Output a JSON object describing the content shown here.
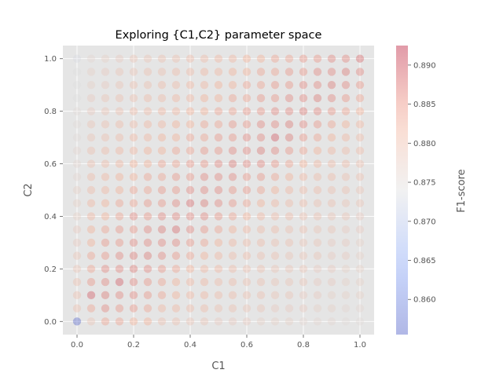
{
  "chart_data": {
    "type": "scatter",
    "title": "Exploring {C1,C2} parameter space",
    "xlabel": "C1",
    "ylabel": "C2",
    "colorbar_label": "F1-score",
    "xlim": [
      -0.05,
      1.05
    ],
    "ylim": [
      -0.05,
      1.05
    ],
    "x_ticks": [
      "0.0",
      "0.2",
      "0.4",
      "0.6",
      "0.8",
      "1.0"
    ],
    "y_ticks": [
      "0.0",
      "0.2",
      "0.4",
      "0.6",
      "0.8",
      "1.0"
    ],
    "colorbar_range": [
      0.8555,
      0.8925
    ],
    "colorbar_ticks": [
      "0.860",
      "0.865",
      "0.870",
      "0.875",
      "0.880",
      "0.885",
      "0.890"
    ],
    "colormap": "coolwarm",
    "grid": true,
    "background": "#e5e5e5",
    "marker_alpha": 0.35,
    "grid_x": [
      0,
      0.05,
      0.1,
      0.15,
      0.2,
      0.25,
      0.3,
      0.35,
      0.4,
      0.45,
      0.5,
      0.55,
      0.6,
      0.65,
      0.7,
      0.75,
      0.8,
      0.85,
      0.9,
      0.95,
      1.0
    ],
    "grid_y": [
      0,
      0.05,
      0.1,
      0.15,
      0.2,
      0.25,
      0.3,
      0.35,
      0.4,
      0.45,
      0.5,
      0.55,
      0.6,
      0.65,
      0.7,
      0.75,
      0.8,
      0.85,
      0.9,
      0.95,
      1.0
    ],
    "scores": [
      [
        0.856,
        0.879,
        0.884,
        0.884,
        0.883,
        0.883,
        0.88,
        0.88,
        0.879,
        0.879,
        0.878,
        0.878,
        0.878,
        0.877,
        0.877,
        0.877,
        0.876,
        0.876,
        0.876,
        0.875,
        0.875
      ],
      [
        0.88,
        0.884,
        0.886,
        0.885,
        0.885,
        0.884,
        0.882,
        0.882,
        0.881,
        0.881,
        0.88,
        0.88,
        0.879,
        0.879,
        0.878,
        0.878,
        0.878,
        0.877,
        0.877,
        0.876,
        0.876
      ],
      [
        0.88,
        0.889,
        0.887,
        0.886,
        0.886,
        0.885,
        0.884,
        0.883,
        0.882,
        0.882,
        0.881,
        0.881,
        0.88,
        0.88,
        0.879,
        0.879,
        0.878,
        0.878,
        0.877,
        0.877,
        0.877
      ],
      [
        0.88,
        0.885,
        0.886,
        0.889,
        0.886,
        0.885,
        0.884,
        0.883,
        0.882,
        0.882,
        0.881,
        0.881,
        0.88,
        0.88,
        0.879,
        0.879,
        0.879,
        0.878,
        0.878,
        0.877,
        0.877
      ],
      [
        0.879,
        0.884,
        0.886,
        0.886,
        0.887,
        0.886,
        0.885,
        0.884,
        0.883,
        0.882,
        0.882,
        0.881,
        0.88,
        0.88,
        0.879,
        0.879,
        0.879,
        0.878,
        0.878,
        0.877,
        0.877
      ],
      [
        0.879,
        0.884,
        0.885,
        0.886,
        0.887,
        0.887,
        0.886,
        0.885,
        0.884,
        0.883,
        0.882,
        0.881,
        0.881,
        0.88,
        0.88,
        0.879,
        0.879,
        0.879,
        0.878,
        0.878,
        0.877
      ],
      [
        0.878,
        0.883,
        0.885,
        0.885,
        0.886,
        0.886,
        0.886,
        0.886,
        0.885,
        0.884,
        0.883,
        0.882,
        0.881,
        0.881,
        0.88,
        0.88,
        0.879,
        0.879,
        0.878,
        0.878,
        0.877
      ],
      [
        0.878,
        0.883,
        0.884,
        0.885,
        0.885,
        0.886,
        0.887,
        0.888,
        0.886,
        0.885,
        0.884,
        0.883,
        0.882,
        0.881,
        0.881,
        0.88,
        0.88,
        0.879,
        0.879,
        0.878,
        0.878
      ],
      [
        0.877,
        0.882,
        0.883,
        0.884,
        0.886,
        0.885,
        0.886,
        0.886,
        0.886,
        0.886,
        0.885,
        0.884,
        0.883,
        0.882,
        0.881,
        0.881,
        0.88,
        0.88,
        0.879,
        0.879,
        0.878
      ],
      [
        0.877,
        0.882,
        0.883,
        0.884,
        0.884,
        0.885,
        0.885,
        0.886,
        0.888,
        0.887,
        0.886,
        0.885,
        0.884,
        0.883,
        0.882,
        0.881,
        0.881,
        0.88,
        0.88,
        0.879,
        0.879
      ],
      [
        0.877,
        0.881,
        0.882,
        0.883,
        0.884,
        0.884,
        0.885,
        0.885,
        0.886,
        0.886,
        0.886,
        0.885,
        0.885,
        0.884,
        0.883,
        0.882,
        0.881,
        0.881,
        0.88,
        0.88,
        0.879
      ],
      [
        0.876,
        0.881,
        0.882,
        0.883,
        0.883,
        0.884,
        0.884,
        0.885,
        0.885,
        0.886,
        0.886,
        0.886,
        0.885,
        0.885,
        0.884,
        0.883,
        0.882,
        0.881,
        0.881,
        0.88,
        0.88
      ],
      [
        0.876,
        0.88,
        0.881,
        0.882,
        0.883,
        0.883,
        0.884,
        0.884,
        0.885,
        0.885,
        0.886,
        0.887,
        0.886,
        0.886,
        0.885,
        0.884,
        0.883,
        0.882,
        0.881,
        0.881,
        0.88
      ],
      [
        0.876,
        0.88,
        0.881,
        0.882,
        0.882,
        0.883,
        0.883,
        0.884,
        0.884,
        0.885,
        0.885,
        0.886,
        0.886,
        0.887,
        0.886,
        0.885,
        0.884,
        0.883,
        0.882,
        0.881,
        0.881
      ],
      [
        0.875,
        0.879,
        0.88,
        0.881,
        0.882,
        0.882,
        0.883,
        0.883,
        0.884,
        0.884,
        0.885,
        0.885,
        0.886,
        0.886,
        0.889,
        0.887,
        0.885,
        0.884,
        0.883,
        0.882,
        0.881
      ],
      [
        0.875,
        0.879,
        0.88,
        0.881,
        0.881,
        0.882,
        0.882,
        0.883,
        0.883,
        0.884,
        0.884,
        0.885,
        0.885,
        0.886,
        0.886,
        0.887,
        0.886,
        0.885,
        0.884,
        0.883,
        0.882
      ],
      [
        0.875,
        0.878,
        0.879,
        0.88,
        0.881,
        0.881,
        0.882,
        0.882,
        0.883,
        0.883,
        0.884,
        0.884,
        0.885,
        0.885,
        0.886,
        0.886,
        0.887,
        0.886,
        0.885,
        0.884,
        0.883
      ],
      [
        0.874,
        0.878,
        0.879,
        0.88,
        0.88,
        0.881,
        0.881,
        0.882,
        0.882,
        0.883,
        0.883,
        0.884,
        0.884,
        0.885,
        0.885,
        0.886,
        0.886,
        0.887,
        0.886,
        0.885,
        0.884
      ],
      [
        0.874,
        0.877,
        0.878,
        0.879,
        0.88,
        0.88,
        0.881,
        0.881,
        0.882,
        0.882,
        0.883,
        0.883,
        0.884,
        0.884,
        0.885,
        0.885,
        0.886,
        0.886,
        0.887,
        0.886,
        0.885
      ],
      [
        0.874,
        0.877,
        0.878,
        0.879,
        0.879,
        0.88,
        0.88,
        0.881,
        0.881,
        0.882,
        0.882,
        0.883,
        0.883,
        0.884,
        0.884,
        0.885,
        0.885,
        0.886,
        0.886,
        0.887,
        0.886
      ],
      [
        0.873,
        0.876,
        0.877,
        0.878,
        0.879,
        0.879,
        0.88,
        0.88,
        0.881,
        0.881,
        0.882,
        0.882,
        0.883,
        0.883,
        0.884,
        0.884,
        0.885,
        0.885,
        0.886,
        0.886,
        0.888
      ]
    ]
  }
}
